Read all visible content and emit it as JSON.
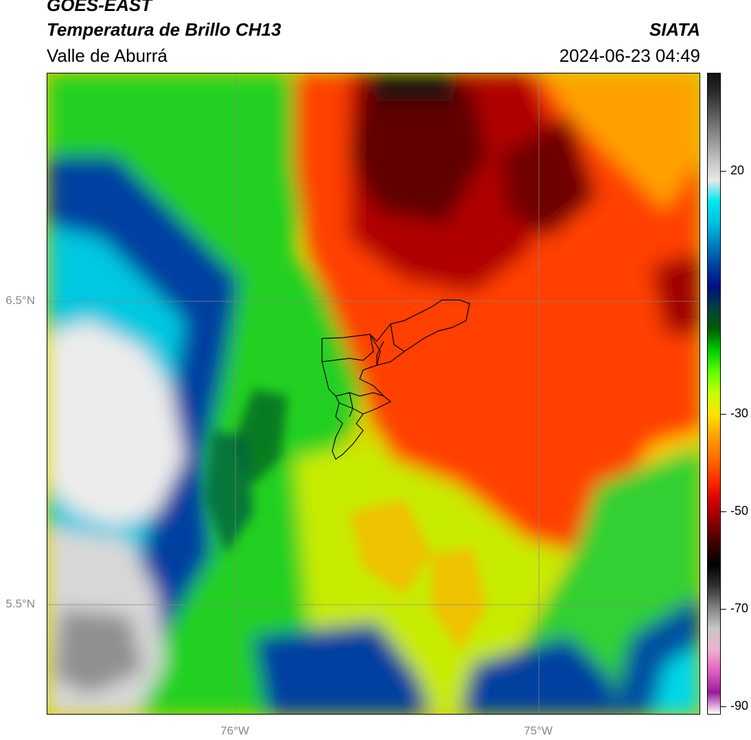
{
  "header": {
    "satellite": "GOES-EAST",
    "product": "Temperatura de Brillo CH13",
    "region": "Valle de Aburrá",
    "agency": "SIATA",
    "datetime": "2024-06-23 04:49"
  },
  "map": {
    "lat_labels": [
      "6.5°N",
      "5.5°N"
    ],
    "lon_labels": [
      "76°W",
      "75°W"
    ],
    "gridlines": true
  },
  "colorbar": {
    "tick_labels": [
      "20",
      "-30",
      "-50",
      "-70",
      "-90"
    ],
    "colors": [
      "#ffffff",
      "#9b1b9b",
      "#e060c0",
      "#f0b0d0",
      "#c8c8c8",
      "#808080",
      "#303030",
      "#000000",
      "#400000",
      "#8b0000",
      "#d40000",
      "#ff3000",
      "#ff7000",
      "#ffa000",
      "#ffe000",
      "#c8ff00",
      "#60ff00",
      "#00d000",
      "#006000",
      "#004040",
      "#001080",
      "#0040a0",
      "#0080c0",
      "#00c0e0",
      "#00e8f0",
      "#e8e8e8",
      "#c0c0c0",
      "#909090",
      "#606060",
      "#303030",
      "#101010"
    ]
  }
}
